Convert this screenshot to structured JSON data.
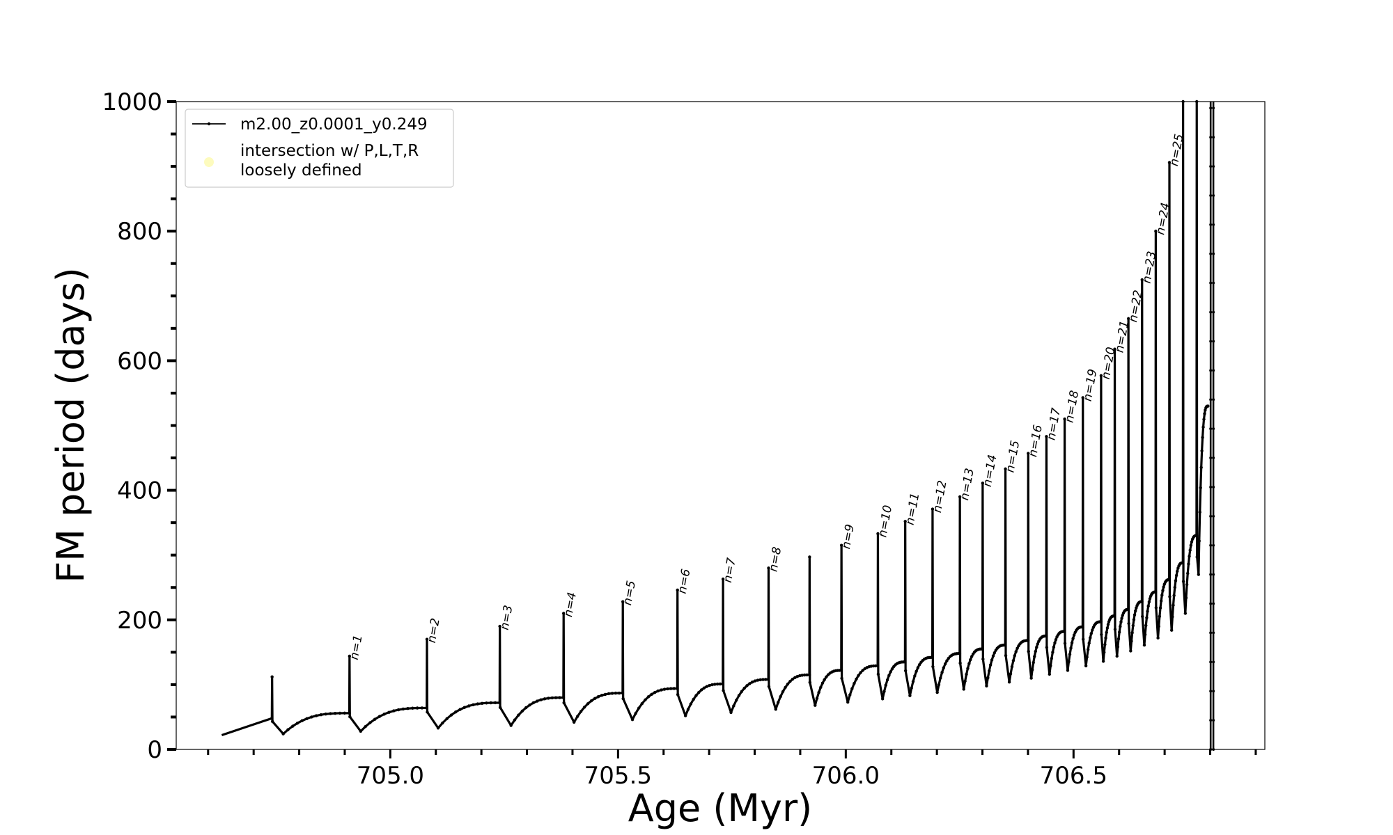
{
  "chart_data": {
    "type": "line",
    "xlabel": "Age (Myr)",
    "ylabel": "FM period (days)",
    "xlim": [
      704.53,
      706.92
    ],
    "ylim": [
      0,
      1000
    ],
    "x_ticks": [
      705.0,
      705.5,
      706.0,
      706.5
    ],
    "x_tick_labels": [
      "705.0",
      "705.5",
      "706.0",
      "706.5"
    ],
    "x_minor_step": 0.1,
    "y_ticks": [
      0,
      200,
      400,
      600,
      800,
      1000
    ],
    "y_tick_labels": [
      "0",
      "200",
      "400",
      "600",
      "800",
      "1000"
    ],
    "y_minor_step": 50,
    "grid": false,
    "legend": {
      "placement": "upper-left",
      "entries": [
        {
          "label": "m2.00_z0.0001_y0.249",
          "style": "line-marker",
          "color": "#000000"
        },
        {
          "label_lines": [
            "intersection w/ P,L,T,R",
            "loosely defined"
          ],
          "style": "dot",
          "color": "#fdfbbe"
        }
      ]
    },
    "series": [
      {
        "style": "line-marker",
        "color": "#000000",
        "start": {
          "x": 704.63,
          "y": 22
        },
        "pulses": [
          {
            "x": 704.74,
            "peak": 112,
            "base": 48,
            "dip": 24,
            "label": ""
          },
          {
            "x": 704.91,
            "peak": 144,
            "base": 56,
            "dip": 28,
            "label": "n=1"
          },
          {
            "x": 705.08,
            "peak": 170,
            "base": 64,
            "dip": 33,
            "label": "n=2"
          },
          {
            "x": 705.24,
            "peak": 190,
            "base": 72,
            "dip": 37,
            "label": "n=3"
          },
          {
            "x": 705.38,
            "peak": 210,
            "base": 80,
            "dip": 42,
            "label": "n=4"
          },
          {
            "x": 705.51,
            "peak": 228,
            "base": 87,
            "dip": 46,
            "label": "n=5"
          },
          {
            "x": 705.63,
            "peak": 246,
            "base": 94,
            "dip": 52,
            "label": "n=6"
          },
          {
            "x": 705.73,
            "peak": 263,
            "base": 101,
            "dip": 57,
            "label": "n=7"
          },
          {
            "x": 705.83,
            "peak": 280,
            "base": 108,
            "dip": 62,
            "label": "n=8"
          },
          {
            "x": 705.92,
            "peak": 297,
            "base": 115,
            "dip": 68,
            "label": ""
          },
          {
            "x": 705.99,
            "peak": 315,
            "base": 122,
            "dip": 73,
            "label": "n=9"
          },
          {
            "x": 706.07,
            "peak": 333,
            "base": 129,
            "dip": 78,
            "label": "n=10"
          },
          {
            "x": 706.13,
            "peak": 352,
            "base": 135,
            "dip": 83,
            "label": "n=11"
          },
          {
            "x": 706.19,
            "peak": 371,
            "base": 142,
            "dip": 88,
            "label": "n=12"
          },
          {
            "x": 706.25,
            "peak": 390,
            "base": 148,
            "dip": 93,
            "label": "n=13"
          },
          {
            "x": 706.3,
            "peak": 411,
            "base": 155,
            "dip": 98,
            "label": "n=14"
          },
          {
            "x": 706.35,
            "peak": 433,
            "base": 161,
            "dip": 104,
            "label": "n=15"
          },
          {
            "x": 706.4,
            "peak": 457,
            "base": 168,
            "dip": 110,
            "label": "n=16"
          },
          {
            "x": 706.44,
            "peak": 483,
            "base": 175,
            "dip": 116,
            "label": "n=17"
          },
          {
            "x": 706.48,
            "peak": 510,
            "base": 182,
            "dip": 122,
            "label": "n=18"
          },
          {
            "x": 706.52,
            "peak": 543,
            "base": 189,
            "dip": 129,
            "label": "n=19"
          },
          {
            "x": 706.56,
            "peak": 577,
            "base": 197,
            "dip": 136,
            "label": "n=20"
          },
          {
            "x": 706.59,
            "peak": 618,
            "base": 206,
            "dip": 144,
            "label": "n=21"
          },
          {
            "x": 706.62,
            "peak": 665,
            "base": 216,
            "dip": 152,
            "label": "n=22"
          },
          {
            "x": 706.65,
            "peak": 725,
            "base": 228,
            "dip": 161,
            "label": "n=23"
          },
          {
            "x": 706.68,
            "peak": 800,
            "base": 243,
            "dip": 172,
            "label": "n=24"
          },
          {
            "x": 706.71,
            "peak": 906,
            "base": 262,
            "dip": 184,
            "label": "n=25"
          },
          {
            "x": 706.74,
            "peak": 1000,
            "base": 288,
            "dip": 210,
            "label": ""
          },
          {
            "x": 706.77,
            "peak": 1000,
            "base": 330,
            "dip": 270,
            "label": ""
          }
        ],
        "end": {
          "x": 706.795,
          "y": 530
        },
        "end_spikes": [
          {
            "x": 706.801,
            "y_min": 0,
            "y_max": 1000
          },
          {
            "x": 706.807,
            "y_min": 0,
            "y_max": 1000
          }
        ]
      }
    ]
  }
}
